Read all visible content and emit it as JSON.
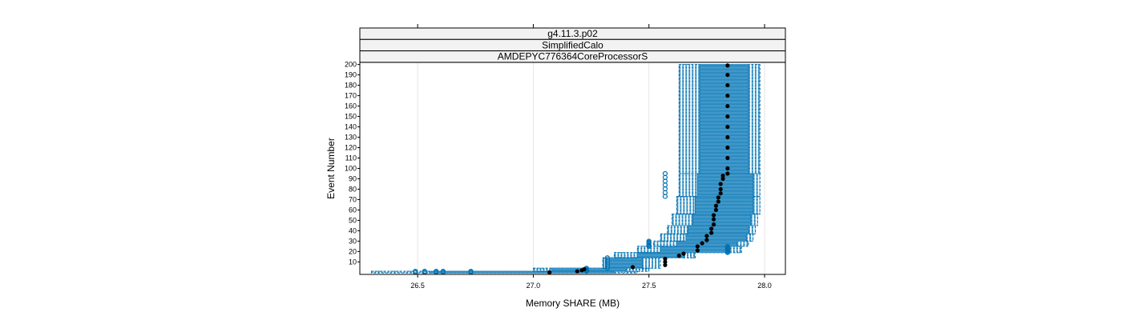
{
  "chart_data": {
    "type": "box",
    "strips": [
      "g4.11.3.p02",
      "SimplifiedCalo",
      "AMDEPYC776364CoreProcessorS"
    ],
    "xlabel": "Memory SHARE (MB)",
    "ylabel": "Event Number",
    "xlim": [
      26.25,
      28.09
    ],
    "ylim": [
      -2,
      202
    ],
    "x_ticks": [
      26.5,
      27.0,
      27.5,
      28.0
    ],
    "x_tick_labels": [
      "26.5",
      "27.0",
      "27.5",
      "28.0"
    ],
    "y_ticks": [
      10,
      20,
      30,
      40,
      50,
      60,
      70,
      80,
      90,
      100,
      110,
      120,
      130,
      140,
      150,
      160,
      170,
      180,
      190,
      200
    ],
    "y_tick_labels": [
      "10",
      "20",
      "30",
      "40",
      "50",
      "60",
      "70",
      "80",
      "90",
      "100",
      "110",
      "120",
      "130",
      "140",
      "150",
      "160",
      "170",
      "180",
      "190",
      "200"
    ],
    "grid": "vertical",
    "box_color": "#0072B2",
    "median_color": "#000000",
    "bands": [
      {
        "from": 0,
        "to": 1,
        "whisker_lo": 26.3,
        "q1": 26.55,
        "q3": 27.35,
        "whisker_hi": 27.45,
        "outliers": [
          26.49,
          26.53,
          26.58,
          26.61,
          26.73
        ]
      },
      {
        "from": 1,
        "to": 4,
        "whisker_lo": 27.0,
        "q1": 27.08,
        "q3": 27.4,
        "whisker_hi": 27.5,
        "outliers": [
          27.23
        ]
      },
      {
        "from": 4,
        "to": 14,
        "whisker_lo": 27.3,
        "q1": 27.33,
        "q3": 27.47,
        "whisker_hi": 27.55,
        "outliers": [
          27.32
        ]
      },
      {
        "from": 14,
        "to": 19,
        "whisker_lo": 27.35,
        "q1": 27.45,
        "q3": 27.65,
        "whisker_hi": 27.7,
        "outliers": []
      },
      {
        "from": 19,
        "to": 25,
        "whisker_lo": 27.45,
        "q1": 27.55,
        "q3": 27.85,
        "whisker_hi": 27.9,
        "outliers": [
          27.84
        ]
      },
      {
        "from": 25,
        "to": 30,
        "whisker_lo": 27.52,
        "q1": 27.62,
        "q3": 27.88,
        "whisker_hi": 27.93,
        "outliers": [
          27.5
        ]
      },
      {
        "from": 30,
        "to": 37,
        "whisker_lo": 27.55,
        "q1": 27.66,
        "q3": 27.92,
        "whisker_hi": 27.95,
        "outliers": []
      },
      {
        "from": 37,
        "to": 45,
        "whisker_lo": 27.58,
        "q1": 27.67,
        "q3": 27.93,
        "whisker_hi": 27.96,
        "outliers": []
      },
      {
        "from": 45,
        "to": 56,
        "whisker_lo": 27.6,
        "q1": 27.69,
        "q3": 27.94,
        "whisker_hi": 27.97,
        "outliers": []
      },
      {
        "from": 56,
        "to": 73,
        "whisker_lo": 27.62,
        "q1": 27.7,
        "q3": 27.95,
        "whisker_hi": 27.98,
        "outliers": []
      },
      {
        "from": 73,
        "to": 95,
        "whisker_lo": 27.63,
        "q1": 27.71,
        "q3": 27.95,
        "whisker_hi": 27.98,
        "outliers": [
          27.57
        ]
      },
      {
        "from": 95,
        "to": 200,
        "whisker_lo": 27.63,
        "q1": 27.72,
        "q3": 27.93,
        "whisker_hi": 27.98,
        "outliers": []
      }
    ],
    "medians": [
      {
        "x": 27.07,
        "y": 0
      },
      {
        "x": 27.19,
        "y": 1
      },
      {
        "x": 27.21,
        "y": 2
      },
      {
        "x": 27.22,
        "y": 3
      },
      {
        "x": 27.43,
        "y": 5
      },
      {
        "x": 27.57,
        "y": 7
      },
      {
        "x": 27.57,
        "y": 10
      },
      {
        "x": 27.57,
        "y": 13
      },
      {
        "x": 27.63,
        "y": 16
      },
      {
        "x": 27.65,
        "y": 18
      },
      {
        "x": 27.71,
        "y": 21
      },
      {
        "x": 27.71,
        "y": 25
      },
      {
        "x": 27.73,
        "y": 28
      },
      {
        "x": 27.75,
        "y": 31
      },
      {
        "x": 27.75,
        "y": 35
      },
      {
        "x": 27.77,
        "y": 38
      },
      {
        "x": 27.77,
        "y": 42
      },
      {
        "x": 27.78,
        "y": 46
      },
      {
        "x": 27.78,
        "y": 51
      },
      {
        "x": 27.78,
        "y": 55
      },
      {
        "x": 27.79,
        "y": 60
      },
      {
        "x": 27.79,
        "y": 64
      },
      {
        "x": 27.8,
        "y": 68
      },
      {
        "x": 27.8,
        "y": 72
      },
      {
        "x": 27.81,
        "y": 76
      },
      {
        "x": 27.81,
        "y": 80
      },
      {
        "x": 27.81,
        "y": 85
      },
      {
        "x": 27.82,
        "y": 90
      },
      {
        "x": 27.82,
        "y": 93
      },
      {
        "x": 27.84,
        "y": 95
      },
      {
        "x": 27.84,
        "y": 100
      },
      {
        "x": 27.84,
        "y": 110
      },
      {
        "x": 27.84,
        "y": 120
      },
      {
        "x": 27.84,
        "y": 130
      },
      {
        "x": 27.84,
        "y": 140
      },
      {
        "x": 27.84,
        "y": 150
      },
      {
        "x": 27.84,
        "y": 160
      },
      {
        "x": 27.84,
        "y": 170
      },
      {
        "x": 27.84,
        "y": 180
      },
      {
        "x": 27.84,
        "y": 190
      },
      {
        "x": 27.84,
        "y": 199
      }
    ]
  }
}
